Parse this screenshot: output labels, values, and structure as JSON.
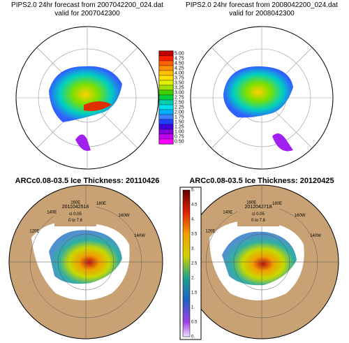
{
  "panels": [
    {
      "title": "PIPS2.0 24hr forecast from 2007042200_024.dat",
      "subtitle": "valid for 2007042300"
    },
    {
      "title": "PIPS2.0 24hr forecast from 2008042200_024.dat",
      "subtitle": "valid for 2008042300"
    },
    {
      "title": "ARCc0.08-03.5 Ice Thickness: 20110426",
      "inset": [
        "2011042518",
        "ci 0.05",
        "0 to 7.6"
      ],
      "lon_labels": [
        "120E",
        "140E",
        "160E",
        "180E",
        "160W",
        "140W"
      ]
    },
    {
      "title": "ARCc0.08-03.5 Ice Thickness: 20120425",
      "inset": [
        "2012042718",
        "ci 0.05",
        "0 to 7.6"
      ],
      "lon_labels": [
        "120E",
        "140E",
        "160E",
        "180E",
        "160W",
        "140W"
      ]
    }
  ],
  "colorbar_top": {
    "labels": [
      "5.00",
      "4.75",
      "4.50",
      "4.25",
      "4.00",
      "3.75",
      "3.50",
      "3.25",
      "3.00",
      "2.75",
      "2.50",
      "2.25",
      "2.00",
      "1.75",
      "1.50",
      "1.25",
      "1.00",
      "0.75",
      "0.50"
    ]
  },
  "colorbar_bottom": {
    "labels": [
      "5.",
      "4.5",
      "4.",
      "3.5",
      "3.",
      "2.5",
      "2.",
      "1.5",
      "1.",
      "0.5",
      "0."
    ]
  }
}
